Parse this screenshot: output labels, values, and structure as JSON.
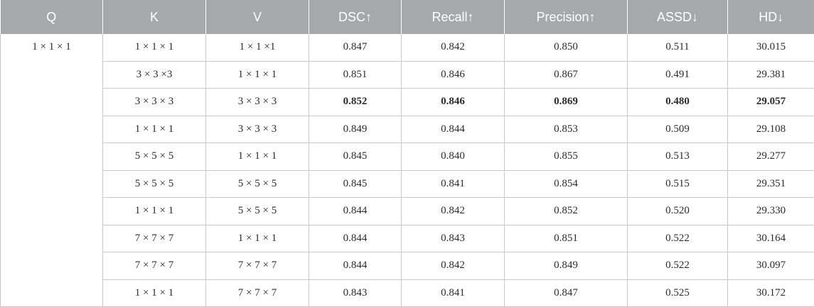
{
  "headers": [
    "Q",
    "K",
    "V",
    "DSC↑",
    "Recall↑",
    "Precision↑",
    "ASSD↓",
    "HD↓"
  ],
  "q_value": "1 × 1 × 1",
  "rows": [
    {
      "k": "1 × 1 × 1",
      "v": "1 × 1 ×1",
      "dsc": "0.847",
      "recall": "0.842",
      "precision": "0.850",
      "assd": "0.511",
      "hd": "30.015"
    },
    {
      "k": "3 × 3 ×3",
      "v": "1 × 1 × 1",
      "dsc": "0.851",
      "recall": "0.846",
      "precision": "0.867",
      "assd": "0.491",
      "hd": "29.381"
    },
    {
      "k": "3 × 3 × 3",
      "v": "3 × 3 × 3",
      "dsc": "0.852",
      "recall": "0.846",
      "precision": "0.869",
      "assd": "0.480",
      "hd": "29.057"
    },
    {
      "k": "1 × 1 × 1",
      "v": "3 × 3 × 3",
      "dsc": "0.849",
      "recall": "0.844",
      "precision": "0.853",
      "assd": "0.509",
      "hd": "29.108"
    },
    {
      "k": "5 × 5 × 5",
      "v": "1 × 1 × 1",
      "dsc": "0.845",
      "recall": "0.840",
      "precision": "0.855",
      "assd": "0.513",
      "hd": "29.277"
    },
    {
      "k": "5 × 5 × 5",
      "v": "5 × 5 × 5",
      "dsc": "0.845",
      "recall": "0.841",
      "precision": "0.854",
      "assd": "0.515",
      "hd": "29.351"
    },
    {
      "k": "1 × 1 × 1",
      "v": "5 × 5 × 5",
      "dsc": "0.844",
      "recall": "0.842",
      "precision": "0.852",
      "assd": "0.520",
      "hd": "29.330"
    },
    {
      "k": "7 × 7 × 7",
      "v": "1 × 1 × 1",
      "dsc": "0.844",
      "recall": "0.843",
      "precision": "0.851",
      "assd": "0.522",
      "hd": "30.164"
    },
    {
      "k": "7 × 7 × 7",
      "v": "7 × 7 × 7",
      "dsc": "0.844",
      "recall": "0.842",
      "precision": "0.849",
      "assd": "0.522",
      "hd": "30.097"
    },
    {
      "k": "1 × 1 × 1",
      "v": "7 × 7 × 7",
      "dsc": "0.843",
      "recall": "0.841",
      "precision": "0.847",
      "assd": "0.525",
      "hd": "30.172"
    }
  ],
  "bold_row": 2
}
